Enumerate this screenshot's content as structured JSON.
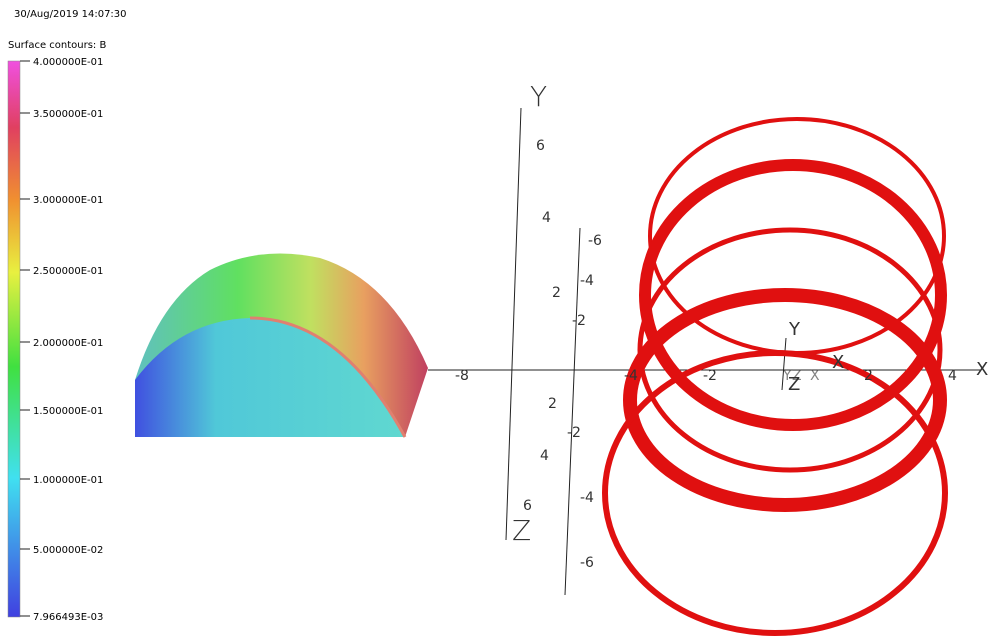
{
  "header": {
    "timestamp": "30/Aug/2019 14:07:30",
    "legend_title": "Surface contours: B"
  },
  "colorbar": {
    "labels": [
      "4.000000E-01",
      "3.500000E-01",
      "3.000000E-01",
      "2.500000E-01",
      "2.000000E-01",
      "1.500000E-01",
      "1.000000E-01",
      "5.000000E-02",
      "7.966493E-03"
    ]
  },
  "axes": {
    "y_title": "Y",
    "x_title": "X",
    "z_title": "Z",
    "labels": [
      "6",
      "4",
      "2",
      "4",
      "6",
      "-6",
      "-4",
      "2",
      "-2",
      "-2",
      "-4",
      "-6",
      "-8",
      "-4",
      "-2",
      "2",
      "4"
    ],
    "triad": [
      "Y",
      "X",
      "Z",
      "Y",
      "X",
      "Z"
    ]
  }
}
